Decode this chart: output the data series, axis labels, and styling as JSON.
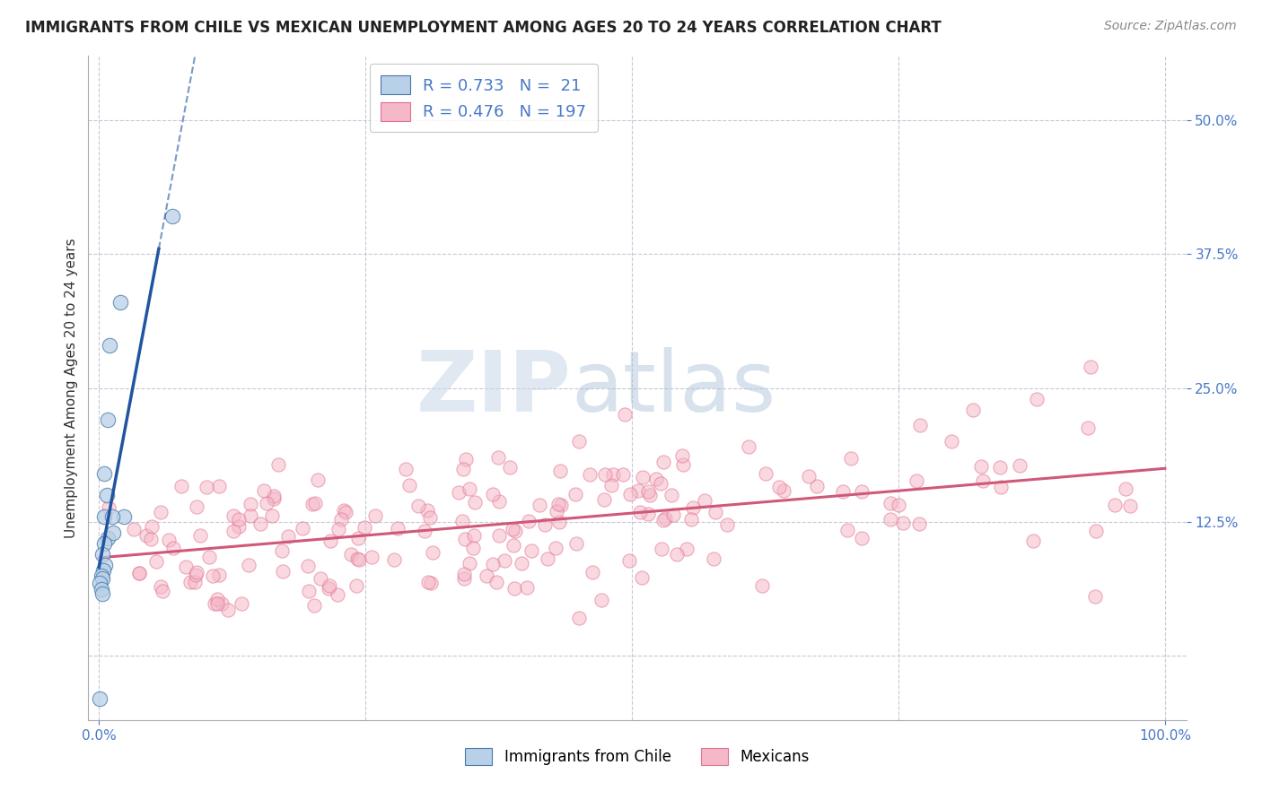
{
  "title": "IMMIGRANTS FROM CHILE VS MEXICAN UNEMPLOYMENT AMONG AGES 20 TO 24 YEARS CORRELATION CHART",
  "source": "Source: ZipAtlas.com",
  "ylabel": "Unemployment Among Ages 20 to 24 years",
  "xlim": [
    -0.01,
    1.02
  ],
  "ylim": [
    -0.06,
    0.56
  ],
  "xtick_positions": [
    0.0,
    1.0
  ],
  "xticklabels": [
    "0.0%",
    "100.0%"
  ],
  "ytick_positions": [
    0.125,
    0.25,
    0.375,
    0.5
  ],
  "yticklabels": [
    "12.5%",
    "25.0%",
    "37.5%",
    "50.0%"
  ],
  "legend_labels": [
    "Immigrants from Chile",
    "Mexicans"
  ],
  "blue_R": 0.733,
  "blue_N": 21,
  "pink_R": 0.476,
  "pink_N": 197,
  "blue_fill": "#b8d0e8",
  "blue_edge": "#4878a8",
  "blue_line": "#2255a0",
  "pink_fill": "#f5b8c8",
  "pink_edge": "#e07090",
  "pink_line": "#d05878",
  "tick_label_color": "#4878c8",
  "background_color": "#ffffff",
  "grid_color": "#c8c8d8",
  "watermark_zip": "ZIP",
  "watermark_atlas": "atlas",
  "title_fontsize": 12,
  "source_fontsize": 10,
  "axis_label_fontsize": 11,
  "tick_fontsize": 11,
  "legend_fontsize": 13
}
